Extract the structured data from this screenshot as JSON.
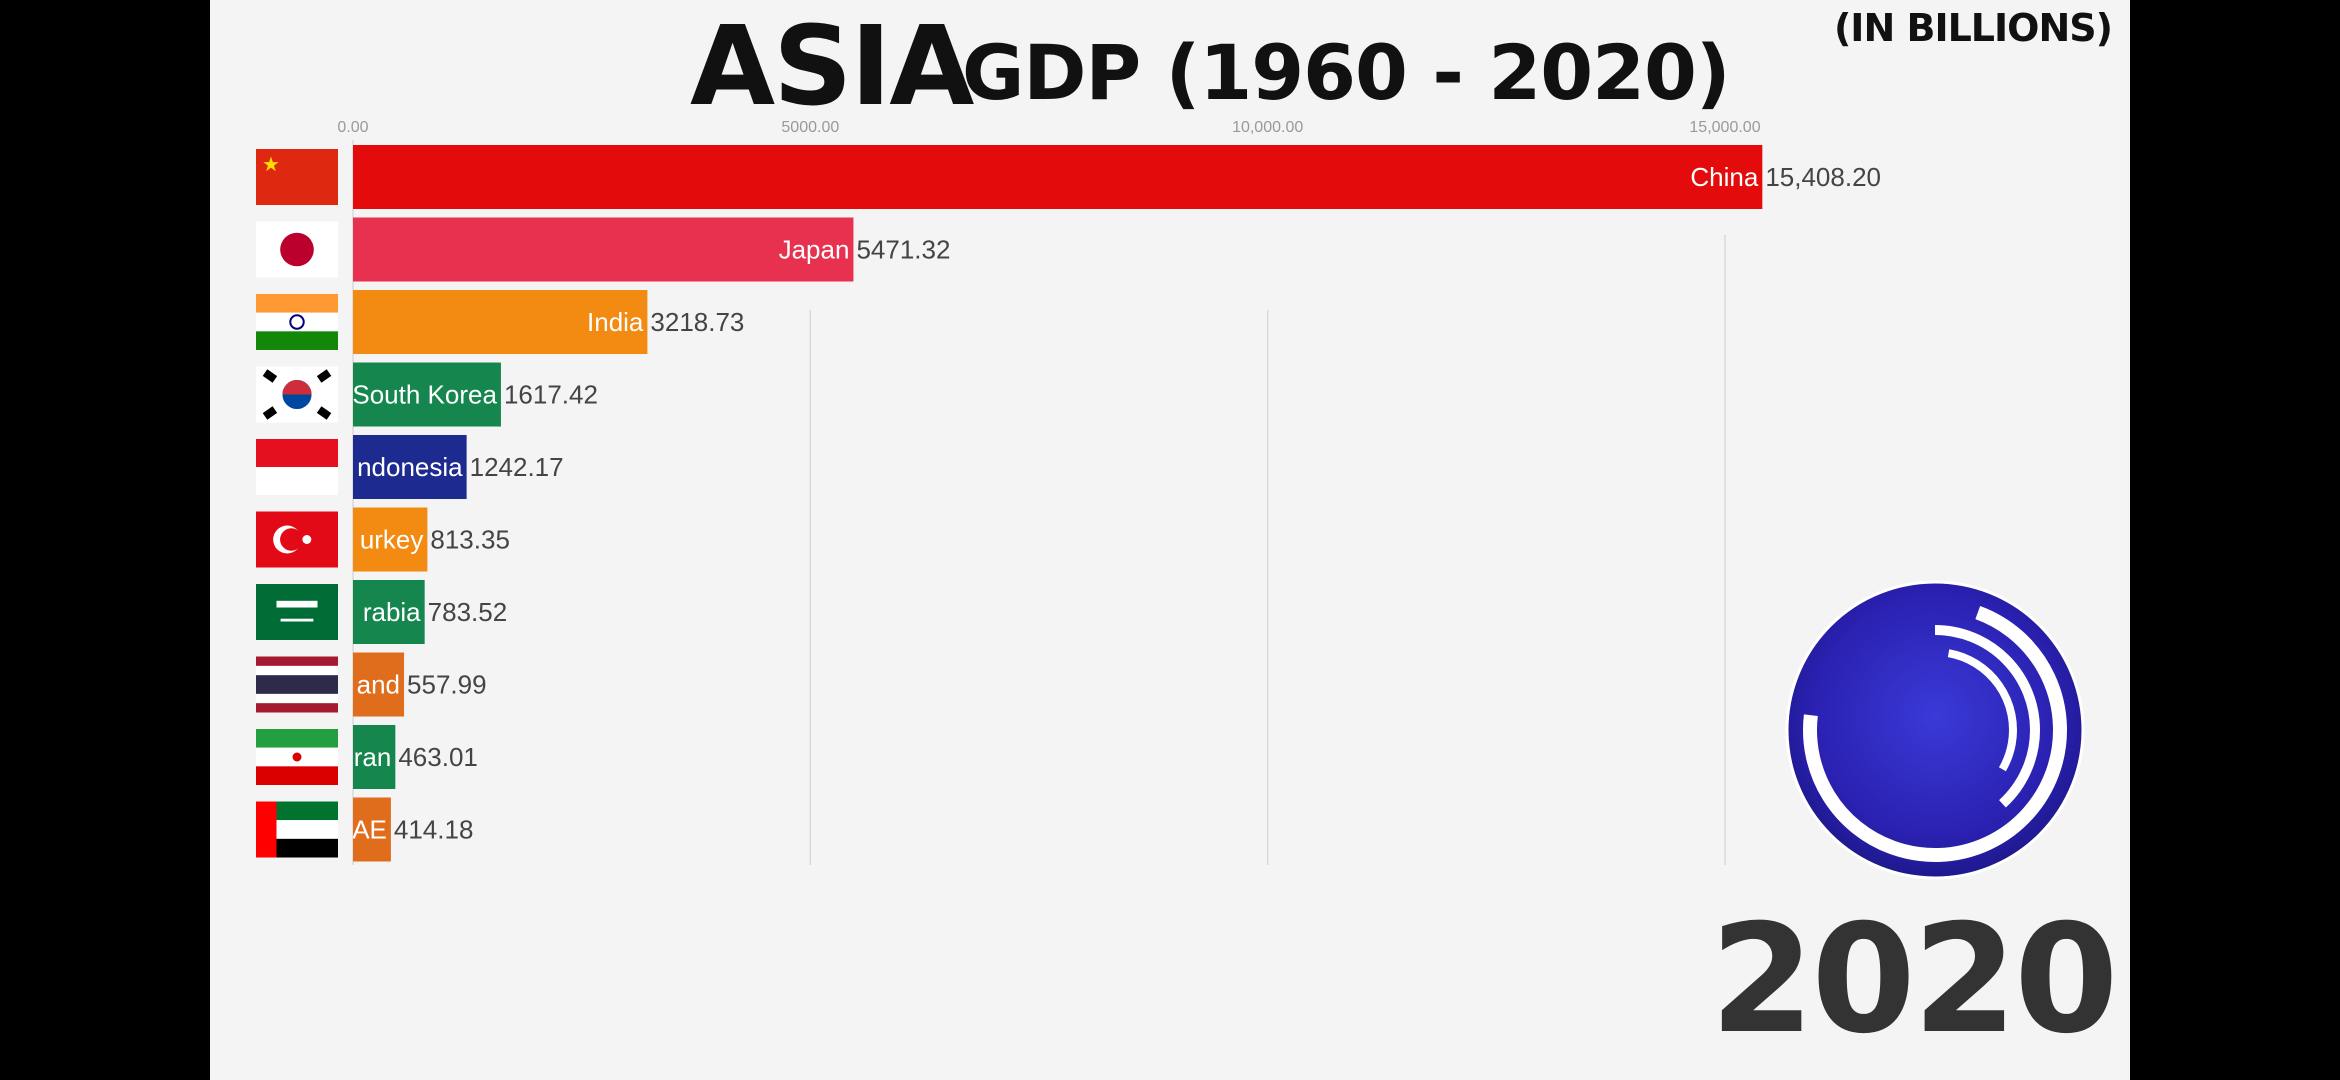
{
  "title": {
    "main": "ASIA",
    "sub": "GDP (1960 - 2020)",
    "unit": "(IN BILLIONS)"
  },
  "year": "2020",
  "colors": {
    "background": "#f4f4f4",
    "gridline": "#d9d9d9"
  },
  "chart_data": {
    "type": "bar",
    "orientation": "horizontal",
    "title": "ASIA GDP (1960 - 2020)",
    "unit": "(IN BILLIONS)",
    "xlim": [
      0,
      15500
    ],
    "ticks": [
      0,
      5000,
      10000,
      15000
    ],
    "tick_labels": [
      "0.00",
      "5000.00",
      "10,000.00",
      "15,000.00"
    ],
    "grid": true,
    "bars": [
      {
        "label": "China",
        "value": 15408.2,
        "value_label": "15,408.20",
        "color": "#e30b0b",
        "flag": "china-flag"
      },
      {
        "label": "Japan",
        "value": 5471.32,
        "value_label": "5471.32",
        "color": "#e8314f",
        "flag": "japan-flag"
      },
      {
        "label": "India",
        "value": 3218.73,
        "value_label": "3218.73",
        "color": "#f38a12",
        "flag": "india-flag"
      },
      {
        "label": "South Korea",
        "value": 1617.42,
        "value_label": "1617.42",
        "color": "#16864f",
        "flag": "south-korea-flag"
      },
      {
        "label": "ndonesia",
        "value": 1242.17,
        "value_label": "1242.17",
        "color": "#1d2a8f",
        "flag": "indonesia-flag"
      },
      {
        "label": "urkey",
        "value": 813.35,
        "value_label": "813.35",
        "color": "#f38a12",
        "flag": "turkey-flag"
      },
      {
        "label": "rabia",
        "value": 783.52,
        "value_label": "783.52",
        "color": "#16864f",
        "flag": "saudi-arabia-flag"
      },
      {
        "label": "and",
        "value": 557.99,
        "value_label": "557.99",
        "color": "#e06d1b",
        "flag": "thailand-flag"
      },
      {
        "label": "ran",
        "value": 463.01,
        "value_label": "463.01",
        "color": "#16864f",
        "flag": "iran-flag"
      },
      {
        "label": "AE",
        "value": 414.18,
        "value_label": "414.18",
        "color": "#e06d1b",
        "flag": "uae-flag"
      }
    ]
  }
}
